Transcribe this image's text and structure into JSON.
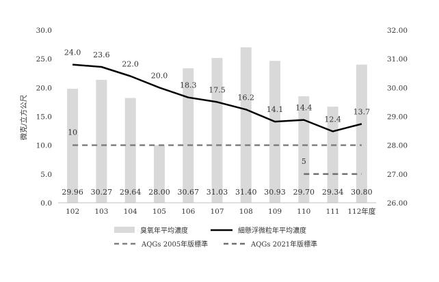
{
  "chart_data": {
    "type": "bar",
    "categories": [
      "102",
      "103",
      "104",
      "105",
      "106",
      "107",
      "108",
      "109",
      "110",
      "111",
      "112年度"
    ],
    "ylabel": "微克/立方公尺",
    "y_left": {
      "ylim": [
        0,
        30
      ],
      "ticks": [
        "0.0",
        "5.0",
        "10.0",
        "15.0",
        "20.0",
        "25.0",
        "30.0"
      ]
    },
    "y_right": {
      "ylim": [
        26,
        32
      ],
      "ticks": [
        "26.00",
        "27.00",
        "28.00",
        "29.00",
        "30.00",
        "31.00",
        "32.00"
      ]
    },
    "grid": false,
    "legend_position": "bottom",
    "series": [
      {
        "name": "臭氧年平均濃度",
        "kind": "bar",
        "axis": "right",
        "color": "#d9d9d9",
        "values": [
          29.96,
          30.27,
          29.64,
          28.0,
          30.67,
          31.03,
          31.4,
          30.93,
          29.7,
          29.34,
          30.8
        ],
        "labels": [
          "29.96",
          "30.27",
          "29.64",
          "28.00",
          "30.67",
          "31.03",
          "31.40",
          "30.93",
          "29.70",
          "29.34",
          "30.80"
        ]
      },
      {
        "name": "細懸浮微粒年平均濃度",
        "kind": "line",
        "axis": "left",
        "color": "#000000",
        "values": [
          24.0,
          23.6,
          22.0,
          20.0,
          18.3,
          17.5,
          16.2,
          14.1,
          14.4,
          12.4,
          13.7
        ],
        "labels": [
          "24.0",
          "23.6",
          "22.0",
          "20.0",
          "18.3",
          "17.5",
          "16.2",
          "14.1",
          "14.4",
          "12.4",
          "13.7"
        ]
      },
      {
        "name": "AQGs 2005年版標準",
        "kind": "dashed",
        "axis": "left",
        "color": "#7f7f7f",
        "value": 10,
        "label": "10",
        "from_index": 0,
        "to_index": 10
      },
      {
        "name": "AQGs 2021年版標準",
        "kind": "dashed",
        "axis": "left",
        "color": "#6f6f6f",
        "value": 5,
        "label": "5",
        "from_index": 8,
        "to_index": 10
      }
    ]
  }
}
